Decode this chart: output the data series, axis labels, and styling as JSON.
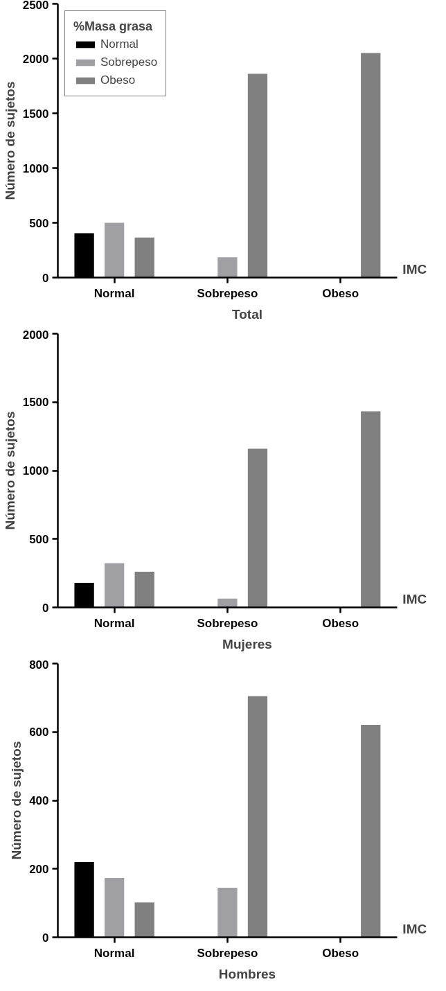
{
  "chart_data": [
    {
      "type": "bar",
      "title": "Total",
      "xlabel": "IMC",
      "ylabel": "Número de sujetos",
      "legend_title": "%Masa grasa",
      "legend": "top left",
      "grid": false,
      "categories": [
        "Normal",
        "Sobrepeso",
        "Obeso"
      ],
      "ylim": [
        0,
        2500
      ],
      "yticks": [
        0,
        500,
        1000,
        1500,
        2000,
        2500
      ],
      "series": [
        {
          "name": "Normal",
          "color": "#000000",
          "values": [
            405,
            0,
            0
          ]
        },
        {
          "name": "Sobrepeso",
          "color": "#a0a0a4",
          "values": [
            500,
            185,
            0
          ]
        },
        {
          "name": "Obeso",
          "color": "#808080",
          "values": [
            365,
            1860,
            2050
          ]
        }
      ]
    },
    {
      "type": "bar",
      "title": "Mujeres",
      "xlabel": "IMC",
      "ylabel": "Número de sujetos",
      "grid": false,
      "categories": [
        "Normal",
        "Sobrepeso",
        "Obeso"
      ],
      "ylim": [
        0,
        2000
      ],
      "yticks": [
        0,
        500,
        1000,
        1500,
        2000
      ],
      "series": [
        {
          "color": "#000000",
          "values": [
            180,
            0,
            0
          ]
        },
        {
          "color": "#a0a0a4",
          "values": [
            323,
            64,
            0
          ]
        },
        {
          "color": "#808080",
          "values": [
            261,
            1160,
            1433
          ]
        }
      ]
    },
    {
      "type": "bar",
      "title": "Hombres",
      "xlabel": "IMC",
      "ylabel": "Número de sujetos",
      "grid": false,
      "categories": [
        "Normal",
        "Sobrepeso",
        "Obeso"
      ],
      "ylim": [
        0,
        800
      ],
      "yticks": [
        0,
        200,
        400,
        600,
        800
      ],
      "series": [
        {
          "color": "#000000",
          "values": [
            220,
            0,
            0
          ]
        },
        {
          "color": "#a0a0a4",
          "values": [
            173,
            145,
            0
          ]
        },
        {
          "color": "#808080",
          "values": [
            102,
            705,
            621
          ]
        }
      ]
    }
  ]
}
